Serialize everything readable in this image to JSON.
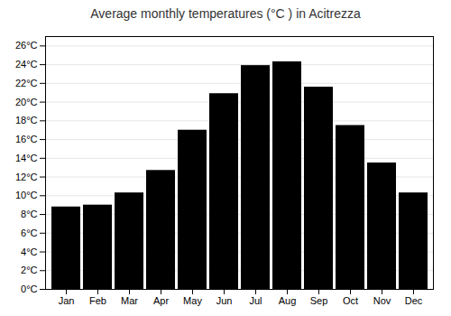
{
  "chart_data": {
    "type": "bar",
    "title": "Average monthly temperatures (°C ) in Acitrezza",
    "categories": [
      "Jan",
      "Feb",
      "Mar",
      "Apr",
      "May",
      "Jun",
      "Jul",
      "Aug",
      "Sep",
      "Oct",
      "Nov",
      "Dec"
    ],
    "values": [
      8.8,
      9.0,
      10.3,
      12.7,
      17.0,
      20.9,
      23.9,
      24.3,
      21.6,
      17.5,
      13.5,
      10.3
    ],
    "ylim": [
      0,
      27
    ],
    "yticks": [
      {
        "value": 0,
        "label": "0°C"
      },
      {
        "value": 2,
        "label": "2°C"
      },
      {
        "value": 4,
        "label": "4°C"
      },
      {
        "value": 6,
        "label": "6°C"
      },
      {
        "value": 8,
        "label": "8°C"
      },
      {
        "value": 10,
        "label": "10°C"
      },
      {
        "value": 12,
        "label": "12°C"
      },
      {
        "value": 14,
        "label": "14°C"
      },
      {
        "value": 16,
        "label": "16°C"
      },
      {
        "value": 18,
        "label": "18°C"
      },
      {
        "value": 20,
        "label": "20°C"
      },
      {
        "value": 22,
        "label": "22°C"
      },
      {
        "value": 24,
        "label": "24°C"
      },
      {
        "value": 26,
        "label": "26°C"
      }
    ],
    "grid": true
  }
}
